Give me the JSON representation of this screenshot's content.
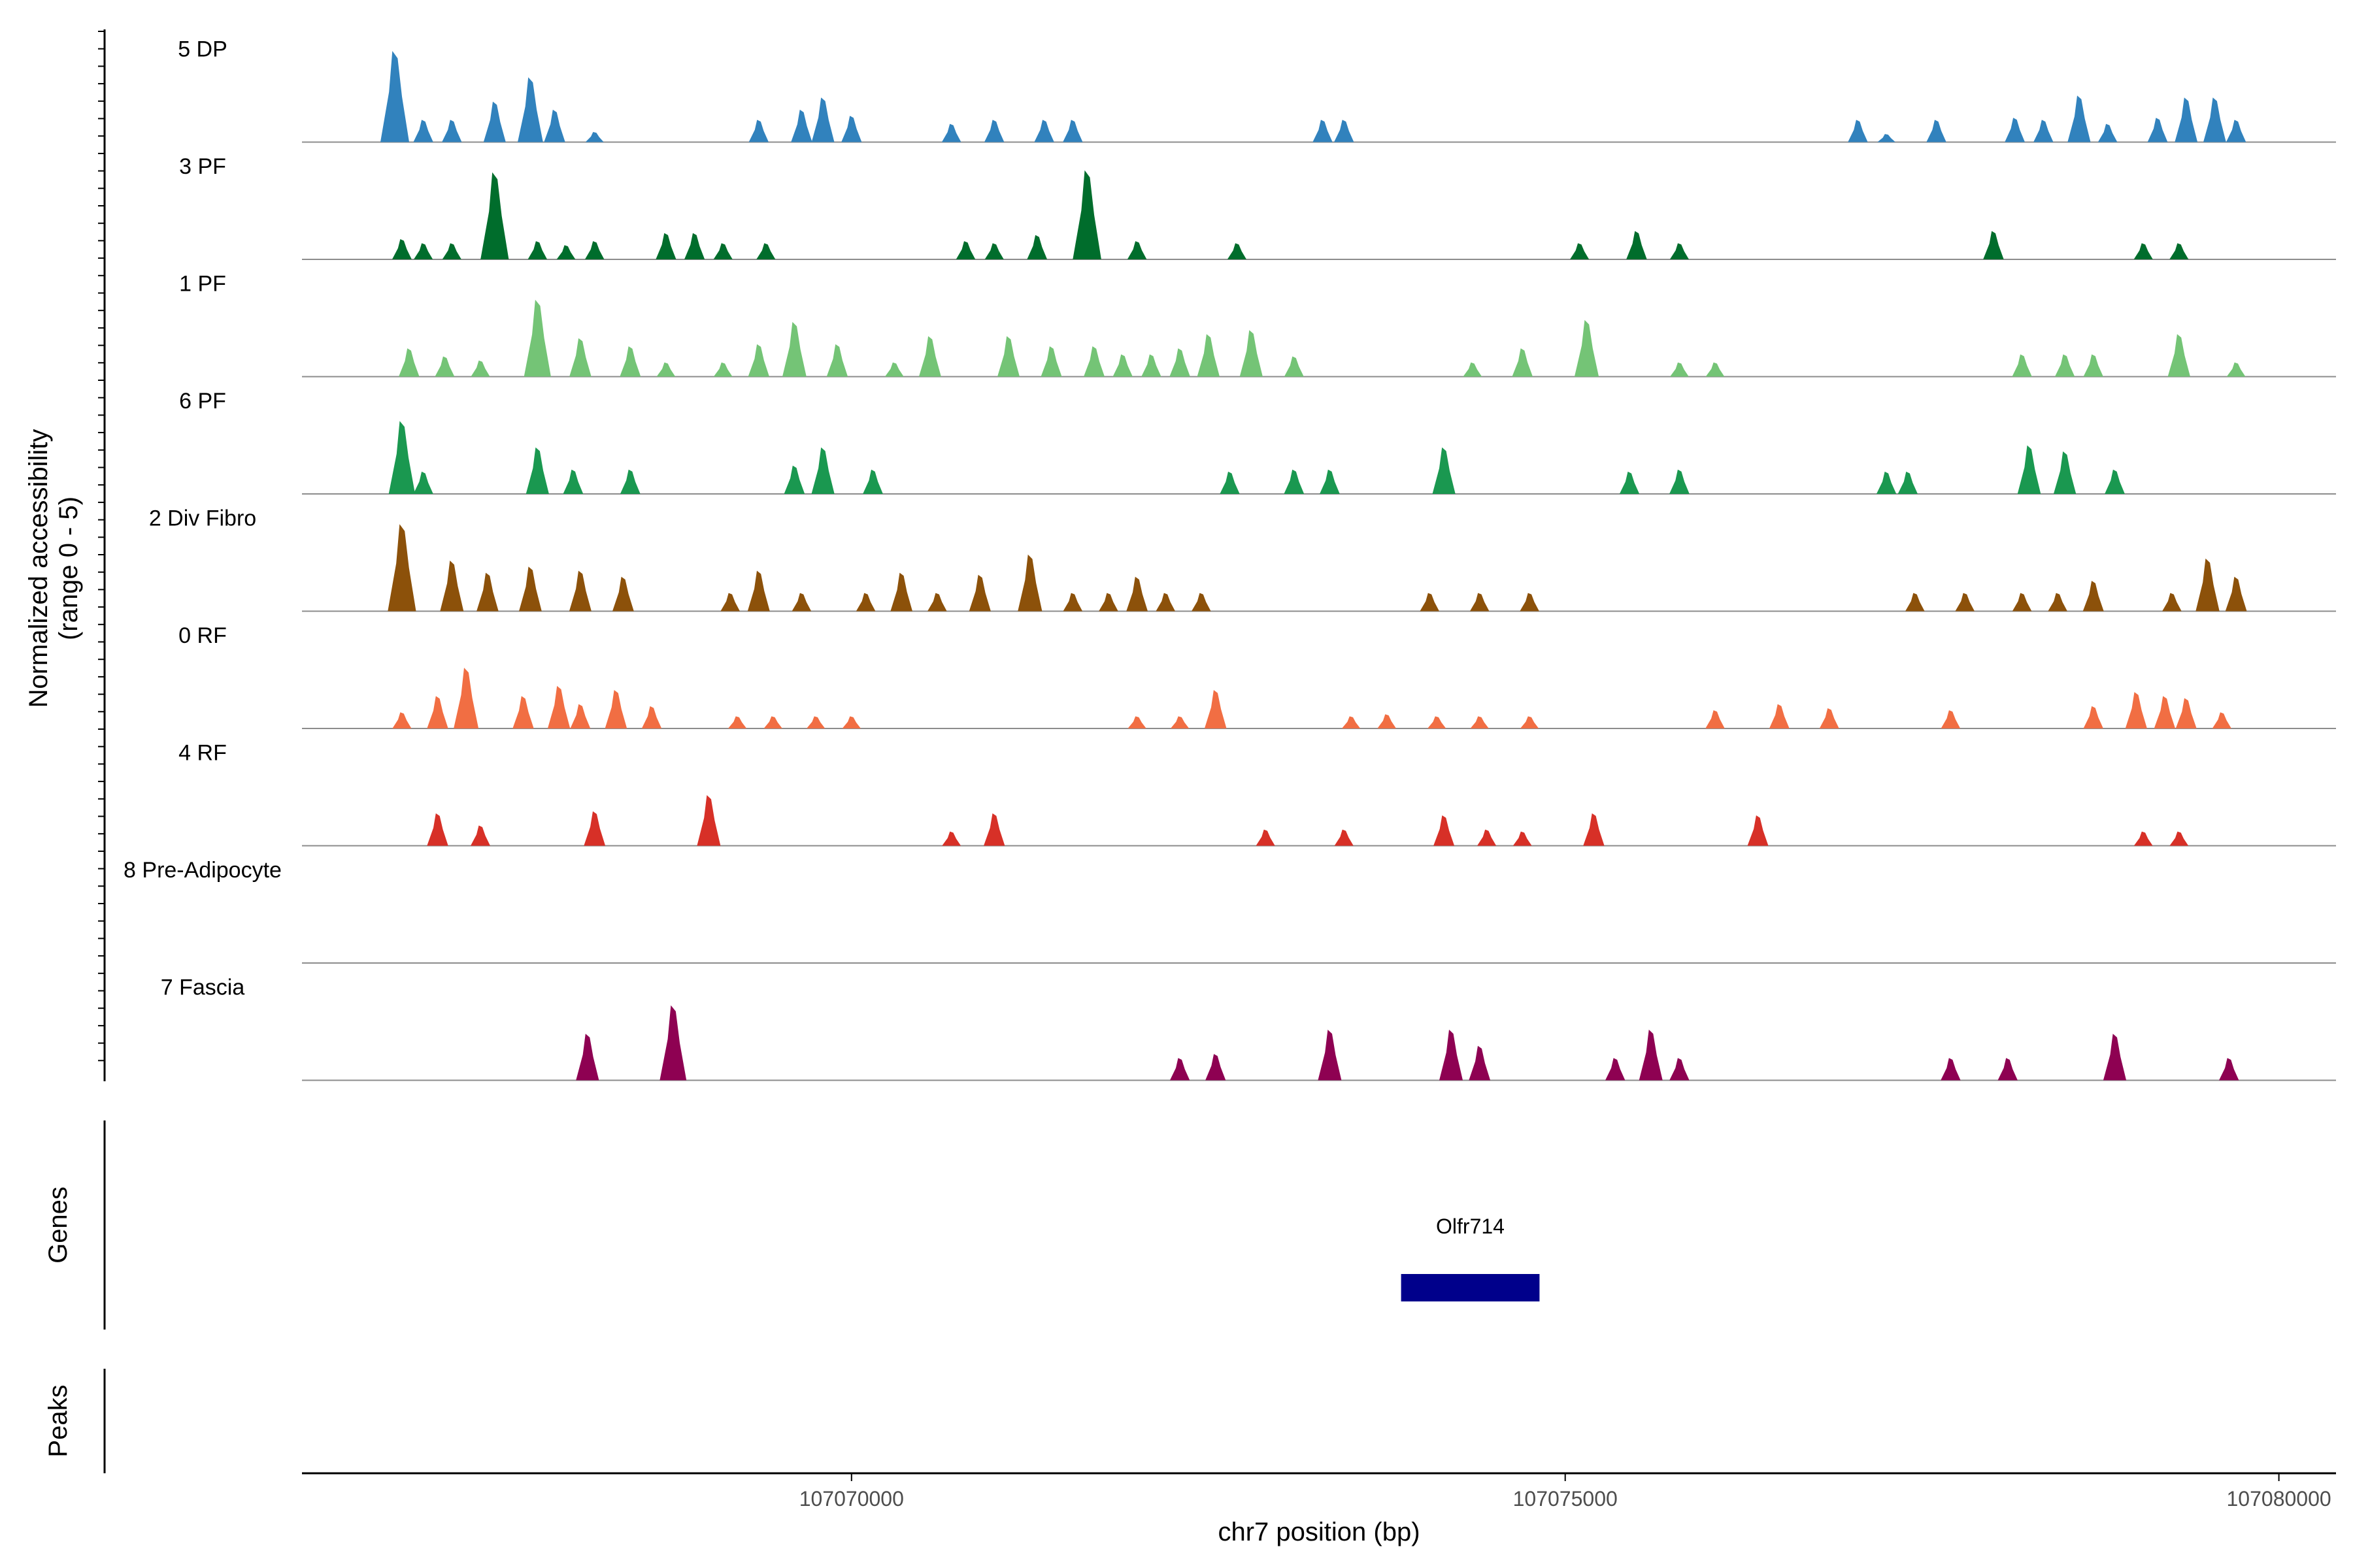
{
  "chart_data": {
    "type": "area",
    "title": "",
    "ylabel": "Normalized accessibility\n(range 0 - 5)",
    "xlabel": "chr7 position (bp)",
    "xlim": [
      107066150,
      107080400
    ],
    "ylim": [
      0,
      5
    ],
    "x_ticks": [
      107070000,
      107075000,
      107080000
    ],
    "x_tick_labels": [
      "107070000",
      "107075000",
      "107080000"
    ],
    "genes_label": "Genes",
    "peaks_label": "Peaks",
    "genes": [
      {
        "name": "Olfr714",
        "start": 107073850,
        "end": 107074820,
        "color": "#00008B"
      }
    ],
    "peaks": [],
    "tracks": [
      {
        "name": "5 DP",
        "color": "#3182BD",
        "peaks": [
          [
            107066800,
            4.5
          ],
          [
            107067000,
            1.1
          ],
          [
            107067200,
            1.1
          ],
          [
            107067500,
            2.0
          ],
          [
            107067750,
            3.2
          ],
          [
            107067920,
            1.6
          ],
          [
            107068200,
            0.5
          ],
          [
            107069350,
            1.1
          ],
          [
            107069650,
            1.6
          ],
          [
            107069800,
            2.2
          ],
          [
            107070000,
            1.3
          ],
          [
            107070700,
            0.9
          ],
          [
            107071000,
            1.1
          ],
          [
            107071350,
            1.1
          ],
          [
            107071550,
            1.1
          ],
          [
            107073300,
            1.1
          ],
          [
            107073450,
            1.1
          ],
          [
            107077050,
            1.1
          ],
          [
            107077250,
            0.4
          ],
          [
            107077600,
            1.1
          ],
          [
            107078150,
            1.2
          ],
          [
            107078350,
            1.1
          ],
          [
            107078600,
            2.3
          ],
          [
            107078800,
            0.9
          ],
          [
            107079150,
            1.2
          ],
          [
            107079350,
            2.2
          ],
          [
            107079550,
            2.2
          ],
          [
            107079700,
            1.1
          ]
        ]
      },
      {
        "name": "3 PF",
        "color": "#006D2C",
        "peaks": [
          [
            107066850,
            1.0
          ],
          [
            107067000,
            0.8
          ],
          [
            107067200,
            0.8
          ],
          [
            107067500,
            4.3
          ],
          [
            107067800,
            0.9
          ],
          [
            107068000,
            0.7
          ],
          [
            107068200,
            0.9
          ],
          [
            107068700,
            1.3
          ],
          [
            107068900,
            1.3
          ],
          [
            107069100,
            0.8
          ],
          [
            107069400,
            0.8
          ],
          [
            107070800,
            0.9
          ],
          [
            107071000,
            0.8
          ],
          [
            107071300,
            1.2
          ],
          [
            107071650,
            4.4
          ],
          [
            107072000,
            0.9
          ],
          [
            107072700,
            0.8
          ],
          [
            107075100,
            0.8
          ],
          [
            107075500,
            1.4
          ],
          [
            107075800,
            0.8
          ],
          [
            107078000,
            1.4
          ],
          [
            107079050,
            0.8
          ],
          [
            107079300,
            0.8
          ]
        ]
      },
      {
        "name": "1 PF",
        "color": "#74C476",
        "peaks": [
          [
            107066900,
            1.4
          ],
          [
            107067150,
            1.0
          ],
          [
            107067400,
            0.8
          ],
          [
            107067800,
            3.8
          ],
          [
            107068100,
            1.9
          ],
          [
            107068450,
            1.5
          ],
          [
            107068700,
            0.7
          ],
          [
            107069100,
            0.7
          ],
          [
            107069350,
            1.6
          ],
          [
            107069600,
            2.7
          ],
          [
            107069900,
            1.6
          ],
          [
            107070300,
            0.7
          ],
          [
            107070550,
            2.0
          ],
          [
            107071100,
            2.0
          ],
          [
            107071400,
            1.5
          ],
          [
            107071700,
            1.5
          ],
          [
            107071900,
            1.1
          ],
          [
            107072100,
            1.1
          ],
          [
            107072300,
            1.4
          ],
          [
            107072500,
            2.1
          ],
          [
            107072800,
            2.3
          ],
          [
            107073100,
            1.0
          ],
          [
            107074350,
            0.7
          ],
          [
            107074700,
            1.4
          ],
          [
            107075150,
            2.8
          ],
          [
            107075800,
            0.7
          ],
          [
            107076050,
            0.7
          ],
          [
            107078200,
            1.1
          ],
          [
            107078500,
            1.1
          ],
          [
            107078700,
            1.1
          ],
          [
            107079300,
            2.1
          ],
          [
            107079700,
            0.7
          ]
        ]
      },
      {
        "name": "6 PF",
        "color": "#1A9850",
        "peaks": [
          [
            107066850,
            3.6
          ],
          [
            107067000,
            1.1
          ],
          [
            107067800,
            2.3
          ],
          [
            107068050,
            1.2
          ],
          [
            107068450,
            1.2
          ],
          [
            107069600,
            1.4
          ],
          [
            107069800,
            2.3
          ],
          [
            107070150,
            1.2
          ],
          [
            107072650,
            1.1
          ],
          [
            107073100,
            1.2
          ],
          [
            107073350,
            1.2
          ],
          [
            107074150,
            2.3
          ],
          [
            107075450,
            1.1
          ],
          [
            107075800,
            1.2
          ],
          [
            107077250,
            1.1
          ],
          [
            107077400,
            1.1
          ],
          [
            107078250,
            2.4
          ],
          [
            107078500,
            2.1
          ],
          [
            107078850,
            1.2
          ]
        ]
      },
      {
        "name": "2 Div Fibro",
        "color": "#8C510A",
        "peaks": [
          [
            107066850,
            4.3
          ],
          [
            107067200,
            2.5
          ],
          [
            107067450,
            1.9
          ],
          [
            107067750,
            2.2
          ],
          [
            107068100,
            2.0
          ],
          [
            107068400,
            1.7
          ],
          [
            107069150,
            0.9
          ],
          [
            107069350,
            2.0
          ],
          [
            107069650,
            0.9
          ],
          [
            107070100,
            0.9
          ],
          [
            107070350,
            1.9
          ],
          [
            107070600,
            0.9
          ],
          [
            107070900,
            1.8
          ],
          [
            107071250,
            2.8
          ],
          [
            107071550,
            0.9
          ],
          [
            107071800,
            0.9
          ],
          [
            107072000,
            1.7
          ],
          [
            107072200,
            0.9
          ],
          [
            107072450,
            0.9
          ],
          [
            107074050,
            0.9
          ],
          [
            107074400,
            0.9
          ],
          [
            107074750,
            0.9
          ],
          [
            107077450,
            0.9
          ],
          [
            107077800,
            0.9
          ],
          [
            107078200,
            0.9
          ],
          [
            107078450,
            0.9
          ],
          [
            107078700,
            1.5
          ],
          [
            107079250,
            0.9
          ],
          [
            107079500,
            2.6
          ],
          [
            107079700,
            1.7
          ]
        ]
      },
      {
        "name": "0 RF",
        "color": "#F16E43",
        "peaks": [
          [
            107066850,
            0.8
          ],
          [
            107067100,
            1.6
          ],
          [
            107067300,
            3.0
          ],
          [
            107067700,
            1.6
          ],
          [
            107067950,
            2.1
          ],
          [
            107068100,
            1.2
          ],
          [
            107068350,
            1.9
          ],
          [
            107068600,
            1.1
          ],
          [
            107069200,
            0.6
          ],
          [
            107069450,
            0.6
          ],
          [
            107069750,
            0.6
          ],
          [
            107070000,
            0.6
          ],
          [
            107072000,
            0.6
          ],
          [
            107072300,
            0.6
          ],
          [
            107072550,
            1.9
          ],
          [
            107073500,
            0.6
          ],
          [
            107073750,
            0.7
          ],
          [
            107074100,
            0.6
          ],
          [
            107074400,
            0.6
          ],
          [
            107074750,
            0.6
          ],
          [
            107076050,
            0.9
          ],
          [
            107076500,
            1.2
          ],
          [
            107076850,
            1.0
          ],
          [
            107077700,
            0.9
          ],
          [
            107078700,
            1.1
          ],
          [
            107079000,
            1.8
          ],
          [
            107079200,
            1.6
          ],
          [
            107079350,
            1.5
          ],
          [
            107079600,
            0.8
          ]
        ]
      },
      {
        "name": "4 RF",
        "color": "#D73027",
        "peaks": [
          [
            107067100,
            1.6
          ],
          [
            107067400,
            1.0
          ],
          [
            107068200,
            1.7
          ],
          [
            107069000,
            2.5
          ],
          [
            107070700,
            0.7
          ],
          [
            107071000,
            1.6
          ],
          [
            107072900,
            0.8
          ],
          [
            107073450,
            0.8
          ],
          [
            107074150,
            1.5
          ],
          [
            107074450,
            0.8
          ],
          [
            107074700,
            0.7
          ],
          [
            107075200,
            1.6
          ],
          [
            107076350,
            1.5
          ],
          [
            107079050,
            0.7
          ],
          [
            107079300,
            0.7
          ]
        ]
      },
      {
        "name": "8 Pre-Adipocyte",
        "color": "#999999",
        "peaks": []
      },
      {
        "name": "7 Fascia",
        "color": "#8E0152",
        "peaks": [
          [
            107068150,
            2.3
          ],
          [
            107068750,
            3.7
          ],
          [
            107072300,
            1.1
          ],
          [
            107072550,
            1.3
          ],
          [
            107073350,
            2.5
          ],
          [
            107074200,
            2.5
          ],
          [
            107074400,
            1.7
          ],
          [
            107075350,
            1.1
          ],
          [
            107075600,
            2.5
          ],
          [
            107075800,
            1.1
          ],
          [
            107077700,
            1.1
          ],
          [
            107078100,
            1.1
          ],
          [
            107078850,
            2.3
          ],
          [
            107079650,
            1.1
          ]
        ]
      }
    ]
  }
}
